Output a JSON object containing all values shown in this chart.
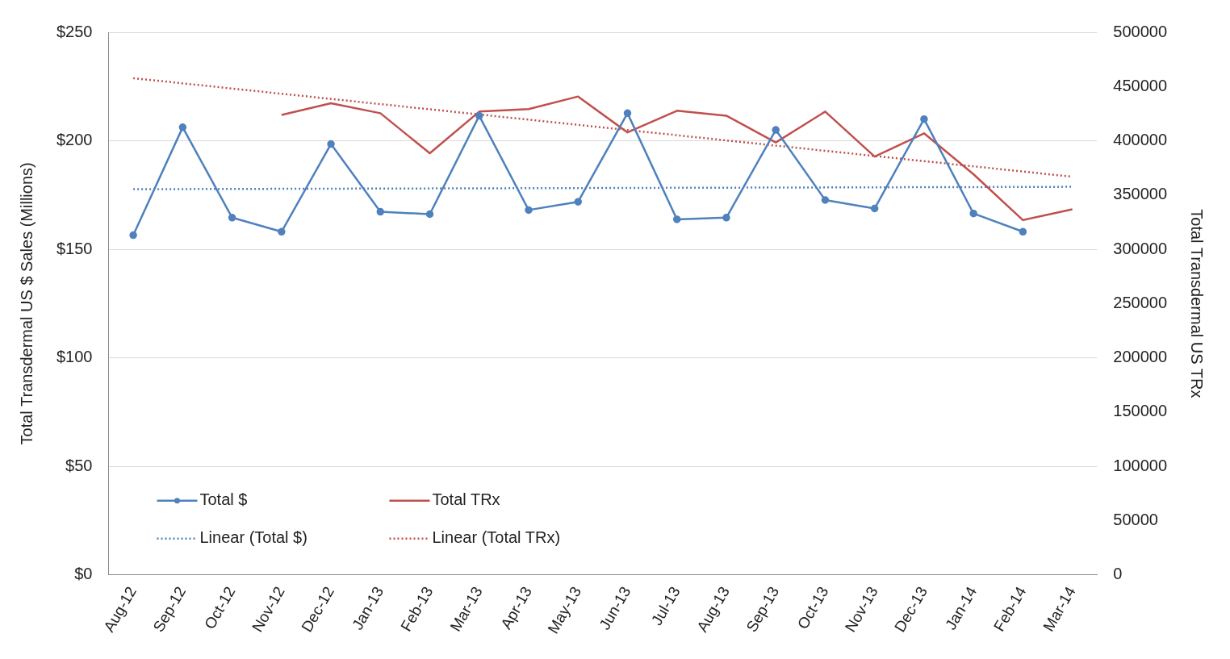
{
  "chart_data": {
    "type": "line",
    "ylabel": "Total Transdermal US $ Sales (Millions)",
    "y2label": "Total Transdermal US TRx",
    "categories": [
      "Aug-12",
      "Sep-12",
      "Oct-12",
      "Nov-12",
      "Dec-12",
      "Jan-13",
      "Feb-13",
      "Mar-13",
      "Apr-13",
      "May-13",
      "Jun-13",
      "Jul-13",
      "Aug-13",
      "Sep-13",
      "Oct-13",
      "Nov-13",
      "Dec-13",
      "Jan-14",
      "Feb-14",
      "Mar-14"
    ],
    "series": [
      {
        "name": "Total $",
        "color": "#4f81bd",
        "marker": "circle",
        "line_style": "solid",
        "values": [
          156.5,
          206.2,
          164.6,
          158.1,
          198.5,
          167.3,
          166.2,
          211.5,
          168.1,
          171.9,
          212.7,
          163.8,
          164.6,
          205,
          172.7,
          168.8,
          210,
          166.5,
          158.1,
          null
        ]
      },
      {
        "name": "Total TRx",
        "color": "#c0504d",
        "marker": "none",
        "line_style": "solid",
        "axis": "y2",
        "values": [
          null,
          null,
          null,
          423800,
          434600,
          425400,
          388500,
          426900,
          429200,
          440800,
          407700,
          427700,
          423100,
          398500,
          426900,
          385400,
          406900,
          369200,
          326900,
          336900
        ]
      },
      {
        "name": "Linear (Total $)",
        "color": "#4f81bd",
        "marker": "none",
        "line_style": "dotted",
        "x": [
          "Aug-12",
          "Mar-14"
        ],
        "values": [
          177.7,
          178.8
        ]
      },
      {
        "name": "Linear (Total TRx)",
        "color": "#c0504d",
        "marker": "none",
        "line_style": "dotted",
        "axis": "y2",
        "x": [
          "Aug-12",
          "Mar-14"
        ],
        "values": [
          457700,
          366900
        ]
      }
    ],
    "ylim": [
      0,
      250
    ],
    "yticks": [
      {
        "value": 0,
        "label": "$0"
      },
      {
        "value": 50,
        "label": "$50"
      },
      {
        "value": 100,
        "label": "$100"
      },
      {
        "value": 150,
        "label": "$150"
      },
      {
        "value": 200,
        "label": "$200"
      },
      {
        "value": 250,
        "label": "$250"
      }
    ],
    "y2lim": [
      0,
      500000
    ],
    "y2ticks": [
      0,
      50000,
      100000,
      150000,
      200000,
      250000,
      300000,
      350000,
      400000,
      450000,
      500000
    ],
    "grid": "y",
    "legend": "bottom left"
  }
}
